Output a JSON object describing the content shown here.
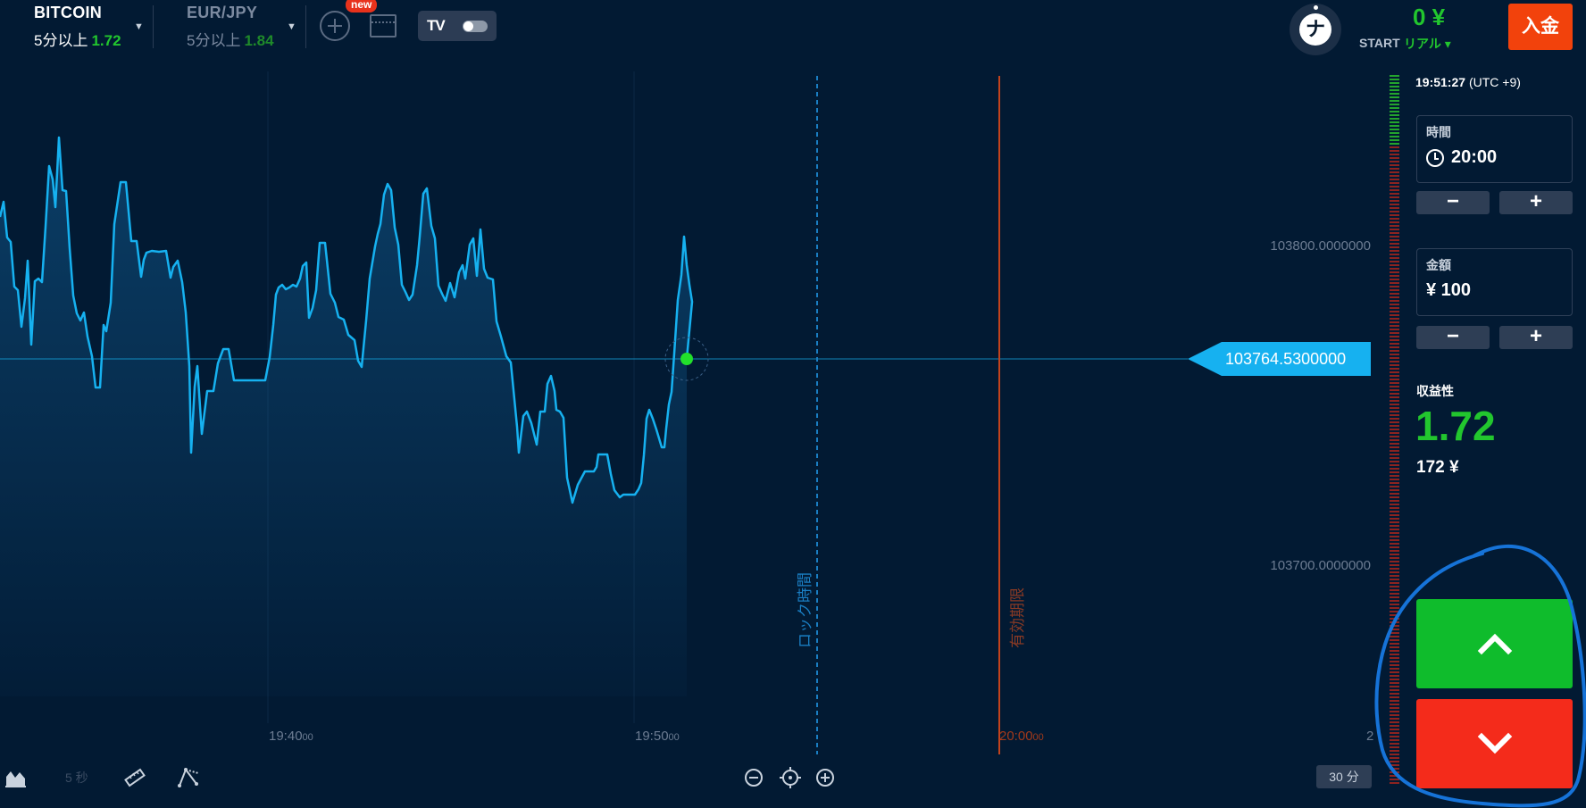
{
  "header": {
    "assets": [
      {
        "name": "BITCOIN",
        "sub": "5分以上",
        "payout": "1.72"
      },
      {
        "name": "EUR/JPY",
        "sub": "5分以上",
        "payout": "1.84"
      }
    ],
    "new_badge": "new",
    "tv_logo": "TV",
    "avatar_initial": "ナ",
    "balance": "0 ¥",
    "account_level": "START",
    "account_type": "リアル ▾",
    "deposit_label": "入金"
  },
  "chart": {
    "price_labels": [
      "103800.0000000",
      "103700.0000000"
    ],
    "current_price": "103764.5300000",
    "time_labels": [
      {
        "main": "19:40",
        "sec": "00"
      },
      {
        "main": "19:50",
        "sec": "00"
      },
      {
        "main": "20:00",
        "sec": "00"
      }
    ],
    "right_edge_label": "2",
    "lock_time_label": "ロック時間",
    "expiry_label": "有効期限",
    "interval_label": "5 秒",
    "zoom_label": "30 分",
    "colors": {
      "line": "#16b1f0",
      "lock": "#1a7fc4",
      "expiry": "#c2431d",
      "dot": "#22e02b"
    }
  },
  "panel": {
    "clock": "19:51:27",
    "timezone": "(UTC +9)",
    "time_label": "時間",
    "time_value": "20:00",
    "amount_label": "金額",
    "amount_value": "¥ 100",
    "minus": "−",
    "plus": "+",
    "profit_label": "収益性",
    "profit_value": "1.72",
    "profit_amount": "172 ¥",
    "colors": {
      "up": "#0fbc2c",
      "down": "#f42b1b"
    }
  }
}
